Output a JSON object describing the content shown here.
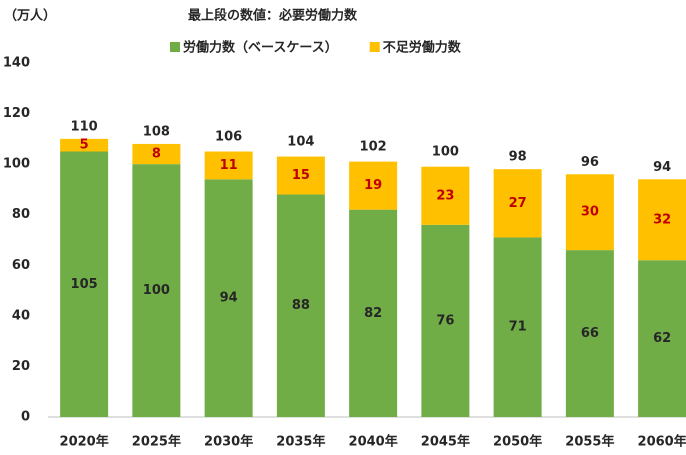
{
  "chart_data": {
    "type": "stacked-bar",
    "title": "最上段の数値：必要労働力数",
    "y_label": "（万人）",
    "categories": [
      "2020年",
      "2025年",
      "2030年",
      "2035年",
      "2040年",
      "2045年",
      "2050年",
      "2055年",
      "2060年"
    ],
    "series": [
      {
        "name": "労働力数（ベースケース）",
        "color": "#70ad47",
        "label_color": "#262626",
        "values": [
          105,
          100,
          94,
          88,
          82,
          76,
          71,
          66,
          62
        ]
      },
      {
        "name": "不足労働力数",
        "color": "#ffc000",
        "label_color": "#c00000",
        "values": [
          5,
          8,
          11,
          15,
          19,
          23,
          27,
          30,
          32
        ]
      }
    ],
    "totals": [
      110,
      108,
      106,
      104,
      102,
      100,
      98,
      96,
      94
    ],
    "ylim": [
      0,
      140
    ],
    "yticks": [
      0,
      20,
      40,
      60,
      80,
      100,
      120,
      140
    ],
    "grid": false
  }
}
